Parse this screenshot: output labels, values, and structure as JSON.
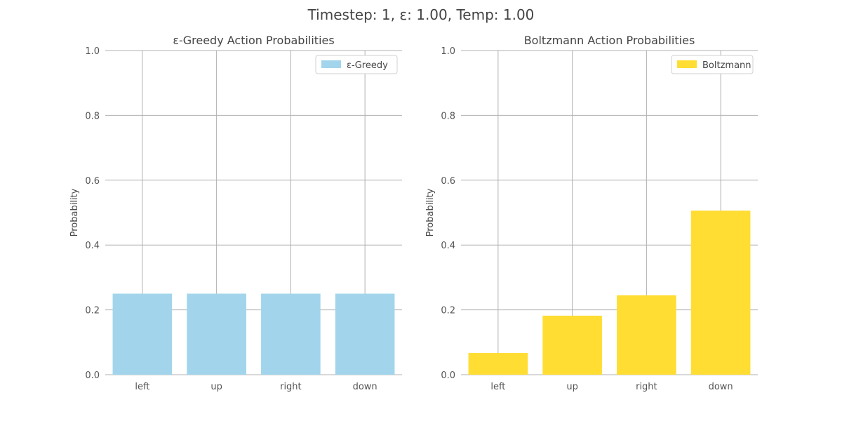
{
  "suptitle": "Timestep: 1, ε: 1.00, Temp: 1.00",
  "chart_data": [
    {
      "type": "bar",
      "title": "ε-Greedy Action Probabilities",
      "xlabel": "",
      "ylabel": "Probability",
      "categories": [
        "left",
        "up",
        "right",
        "down"
      ],
      "series": [
        {
          "name": "ε-Greedy",
          "values": [
            0.25,
            0.25,
            0.25,
            0.25
          ],
          "color": "#a2d5ec"
        }
      ],
      "ylim": [
        0,
        1.0
      ],
      "yticks": [
        "0.0",
        "0.2",
        "0.4",
        "0.6",
        "0.8",
        "1.0"
      ],
      "grid": true,
      "legend": "top-right"
    },
    {
      "type": "bar",
      "title": "Boltzmann Action Probabilities",
      "xlabel": "",
      "ylabel": "Probability",
      "categories": [
        "left",
        "up",
        "right",
        "down"
      ],
      "series": [
        {
          "name": "Boltzmann",
          "values": [
            0.067,
            0.182,
            0.245,
            0.506
          ],
          "color": "#ffdd33"
        }
      ],
      "ylim": [
        0,
        1.0
      ],
      "yticks": [
        "0.0",
        "0.2",
        "0.4",
        "0.6",
        "0.8",
        "1.0"
      ],
      "grid": true,
      "legend": "top-right"
    }
  ]
}
